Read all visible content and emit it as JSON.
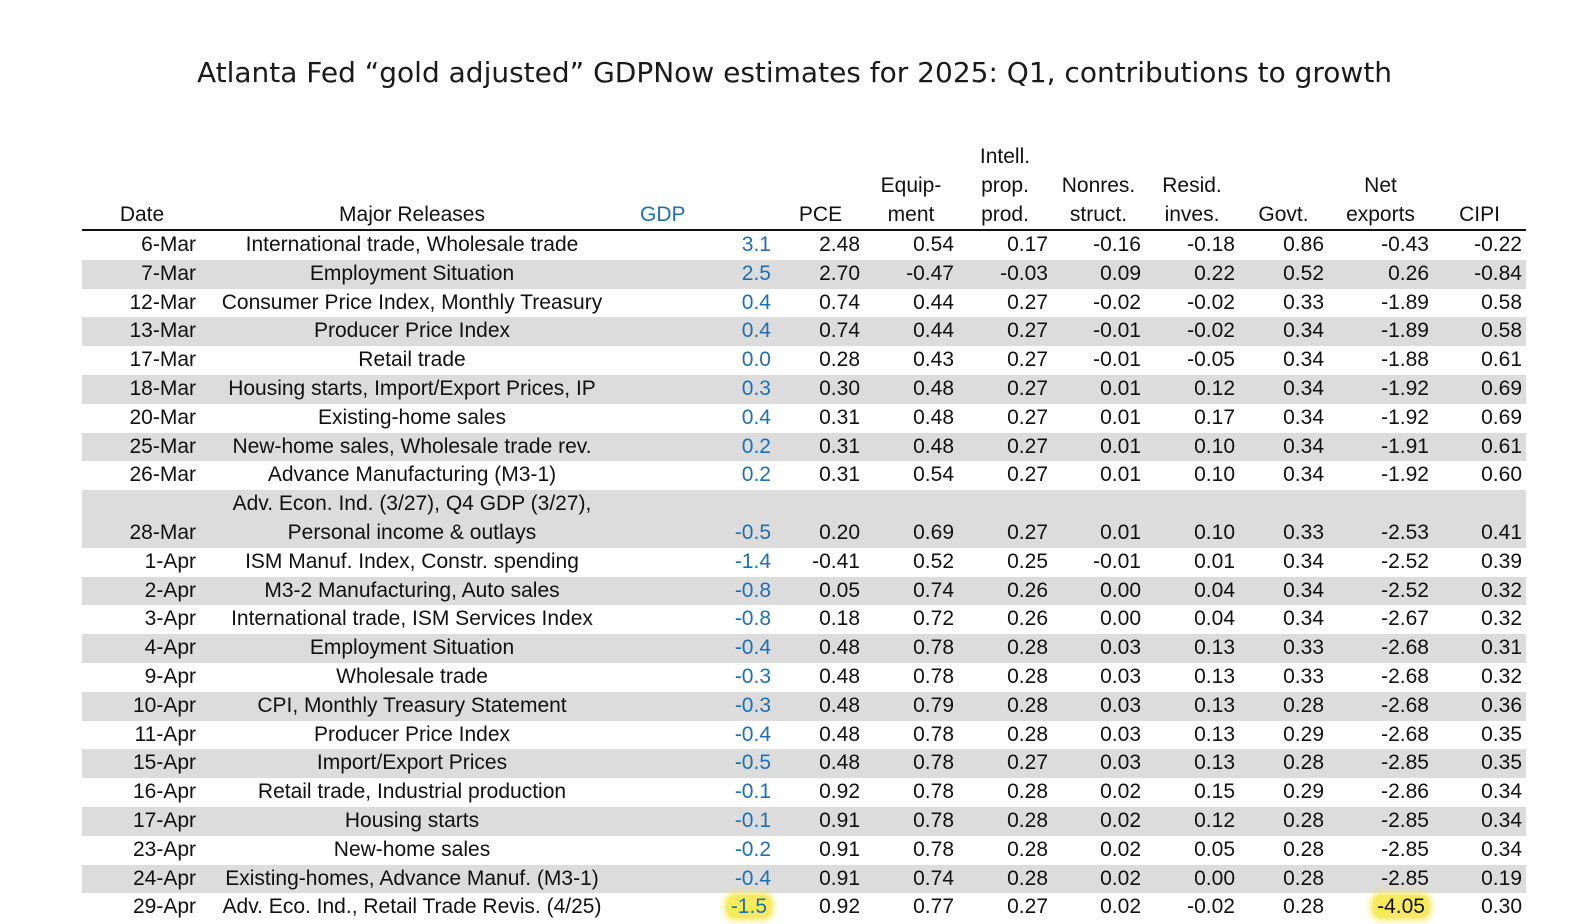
{
  "title": "Atlanta Fed “gold adjusted” GDPNow estimates for 2025: Q1, contributions to growth",
  "colors": {
    "gdp_text": "#1f6fb4",
    "row_stripe": "#dcdcdc",
    "highlight": "#f7ea5f"
  },
  "headers": [
    "Date",
    "Major Releases",
    "GDP",
    "PCE",
    "Equip-\nment",
    "Intell.\nprop.\nprod.",
    "Nonres.\nstruct.",
    "Resid.\ninves.",
    "Govt.",
    "Net\nexports",
    "CIPI"
  ],
  "rows": [
    [
      "6-Mar",
      "International trade, Wholesale trade",
      "3.1",
      "2.48",
      "0.54",
      "0.17",
      "-0.16",
      "-0.18",
      "0.86",
      "-0.43",
      "-0.22"
    ],
    [
      "7-Mar",
      "Employment Situation",
      "2.5",
      "2.70",
      "-0.47",
      "-0.03",
      "0.09",
      "0.22",
      "0.52",
      "0.26",
      "-0.84"
    ],
    [
      "12-Mar",
      "Consumer Price Index, Monthly Treasury",
      "0.4",
      "0.74",
      "0.44",
      "0.27",
      "-0.02",
      "-0.02",
      "0.33",
      "-1.89",
      "0.58"
    ],
    [
      "13-Mar",
      "Producer Price Index",
      "0.4",
      "0.74",
      "0.44",
      "0.27",
      "-0.01",
      "-0.02",
      "0.34",
      "-1.89",
      "0.58"
    ],
    [
      "17-Mar",
      "Retail trade",
      "0.0",
      "0.28",
      "0.43",
      "0.27",
      "-0.01",
      "-0.05",
      "0.34",
      "-1.88",
      "0.61"
    ],
    [
      "18-Mar",
      "Housing starts, Import/Export Prices, IP",
      "0.3",
      "0.30",
      "0.48",
      "0.27",
      "0.01",
      "0.12",
      "0.34",
      "-1.92",
      "0.69"
    ],
    [
      "20-Mar",
      "Existing-home sales",
      "0.4",
      "0.31",
      "0.48",
      "0.27",
      "0.01",
      "0.17",
      "0.34",
      "-1.92",
      "0.69"
    ],
    [
      "25-Mar",
      "New-home sales, Wholesale trade rev.",
      "0.2",
      "0.31",
      "0.48",
      "0.27",
      "0.01",
      "0.10",
      "0.34",
      "-1.91",
      "0.61"
    ],
    [
      "26-Mar",
      "Advance Manufacturing (M3-1)",
      "0.2",
      "0.31",
      "0.54",
      "0.27",
      "0.01",
      "0.10",
      "0.34",
      "-1.92",
      "0.60"
    ],
    [
      "28-Mar",
      "Adv. Econ. Ind. (3/27), Q4 GDP (3/27),\nPersonal income & outlays",
      "-0.5",
      "0.20",
      "0.69",
      "0.27",
      "0.01",
      "0.10",
      "0.33",
      "-2.53",
      "0.41"
    ],
    [
      "1-Apr",
      "ISM Manuf. Index, Constr. spending",
      "-1.4",
      "-0.41",
      "0.52",
      "0.25",
      "-0.01",
      "0.01",
      "0.34",
      "-2.52",
      "0.39"
    ],
    [
      "2-Apr",
      "M3-2 Manufacturing, Auto sales",
      "-0.8",
      "0.05",
      "0.74",
      "0.26",
      "0.00",
      "0.04",
      "0.34",
      "-2.52",
      "0.32"
    ],
    [
      "3-Apr",
      "International trade, ISM Services Index",
      "-0.8",
      "0.18",
      "0.72",
      "0.26",
      "0.00",
      "0.04",
      "0.34",
      "-2.67",
      "0.32"
    ],
    [
      "4-Apr",
      "Employment Situation",
      "-0.4",
      "0.48",
      "0.78",
      "0.28",
      "0.03",
      "0.13",
      "0.33",
      "-2.68",
      "0.31"
    ],
    [
      "9-Apr",
      "Wholesale trade",
      "-0.3",
      "0.48",
      "0.78",
      "0.28",
      "0.03",
      "0.13",
      "0.33",
      "-2.68",
      "0.32"
    ],
    [
      "10-Apr",
      "CPI, Monthly Treasury Statement",
      "-0.3",
      "0.48",
      "0.79",
      "0.28",
      "0.03",
      "0.13",
      "0.28",
      "-2.68",
      "0.36"
    ],
    [
      "11-Apr",
      "Producer Price Index",
      "-0.4",
      "0.48",
      "0.78",
      "0.28",
      "0.03",
      "0.13",
      "0.29",
      "-2.68",
      "0.35"
    ],
    [
      "15-Apr",
      "Import/Export Prices",
      "-0.5",
      "0.48",
      "0.78",
      "0.27",
      "0.03",
      "0.13",
      "0.28",
      "-2.85",
      "0.35"
    ],
    [
      "16-Apr",
      "Retail trade, Industrial production",
      "-0.1",
      "0.92",
      "0.78",
      "0.28",
      "0.02",
      "0.15",
      "0.29",
      "-2.86",
      "0.34"
    ],
    [
      "17-Apr",
      "Housing starts",
      "-0.1",
      "0.91",
      "0.78",
      "0.28",
      "0.02",
      "0.12",
      "0.28",
      "-2.85",
      "0.34"
    ],
    [
      "23-Apr",
      "New-home sales",
      "-0.2",
      "0.91",
      "0.78",
      "0.28",
      "0.02",
      "0.05",
      "0.28",
      "-2.85",
      "0.34"
    ],
    [
      "24-Apr",
      "Existing-homes, Advance Manuf. (M3-1)",
      "-0.4",
      "0.91",
      "0.74",
      "0.28",
      "0.02",
      "0.00",
      "0.28",
      "-2.85",
      "0.19"
    ],
    [
      "29-Apr",
      "Adv. Eco. Ind., Retail Trade Revis. (4/25)",
      "-1.5",
      "0.92",
      "0.77",
      "0.27",
      "0.02",
      "-0.02",
      "0.28",
      "-4.05",
      "0.30"
    ]
  ],
  "highlighted_cells": [
    {
      "row": 22,
      "col": 2
    },
    {
      "row": 22,
      "col": 9
    }
  ]
}
